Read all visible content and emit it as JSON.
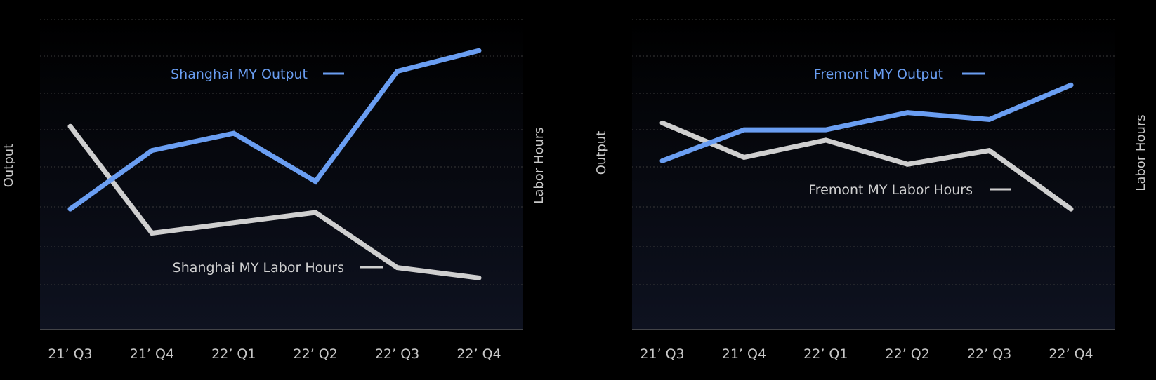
{
  "colors": {
    "background": "#000000",
    "plot_top": "#000000",
    "plot_bottom": "#0e1220",
    "grid": "#3a3a3a",
    "axis_text": "#c8c8c8",
    "output_series": "#6a9ef2",
    "labor_series": "#cfcfcf"
  },
  "chart_data": [
    {
      "type": "line",
      "title": "",
      "x": [
        "21’ Q3",
        "21’ Q4",
        "22’ Q1",
        "22’ Q2",
        "22’ Q3",
        "22’ Q4"
      ],
      "ylabel": "Output",
      "y2label": "Labor Hours",
      "grid": true,
      "series": [
        {
          "name": "Shanghai MY Output",
          "axis": "left",
          "color": "#6a9ef2",
          "values": [
            3.5,
            5.2,
            5.7,
            4.3,
            7.5,
            8.1
          ]
        },
        {
          "name": "Shanghai MY Labor Hours",
          "axis": "right",
          "color": "#cfcfcf",
          "values": [
            5.9,
            2.8,
            3.1,
            3.4,
            1.8,
            1.5
          ]
        }
      ],
      "legend_positions": [
        "upper-middle",
        "lower-middle"
      ]
    },
    {
      "type": "line",
      "title": "",
      "x": [
        "21’ Q3",
        "21’ Q4",
        "22’ Q1",
        "22’ Q2",
        "22’ Q3",
        "22’ Q4"
      ],
      "ylabel": "Output",
      "y2label": "Labor Hours",
      "grid": true,
      "series": [
        {
          "name": "Fremont MY Output",
          "axis": "left",
          "color": "#6a9ef2",
          "values": [
            4.9,
            5.8,
            5.8,
            6.3,
            6.1,
            7.1
          ]
        },
        {
          "name": "Fremont MY Labor Hours",
          "axis": "right",
          "color": "#cfcfcf",
          "values": [
            6.0,
            5.0,
            5.5,
            4.8,
            5.2,
            3.5
          ]
        }
      ],
      "legend_positions": [
        "upper-middle",
        "middle"
      ]
    }
  ]
}
